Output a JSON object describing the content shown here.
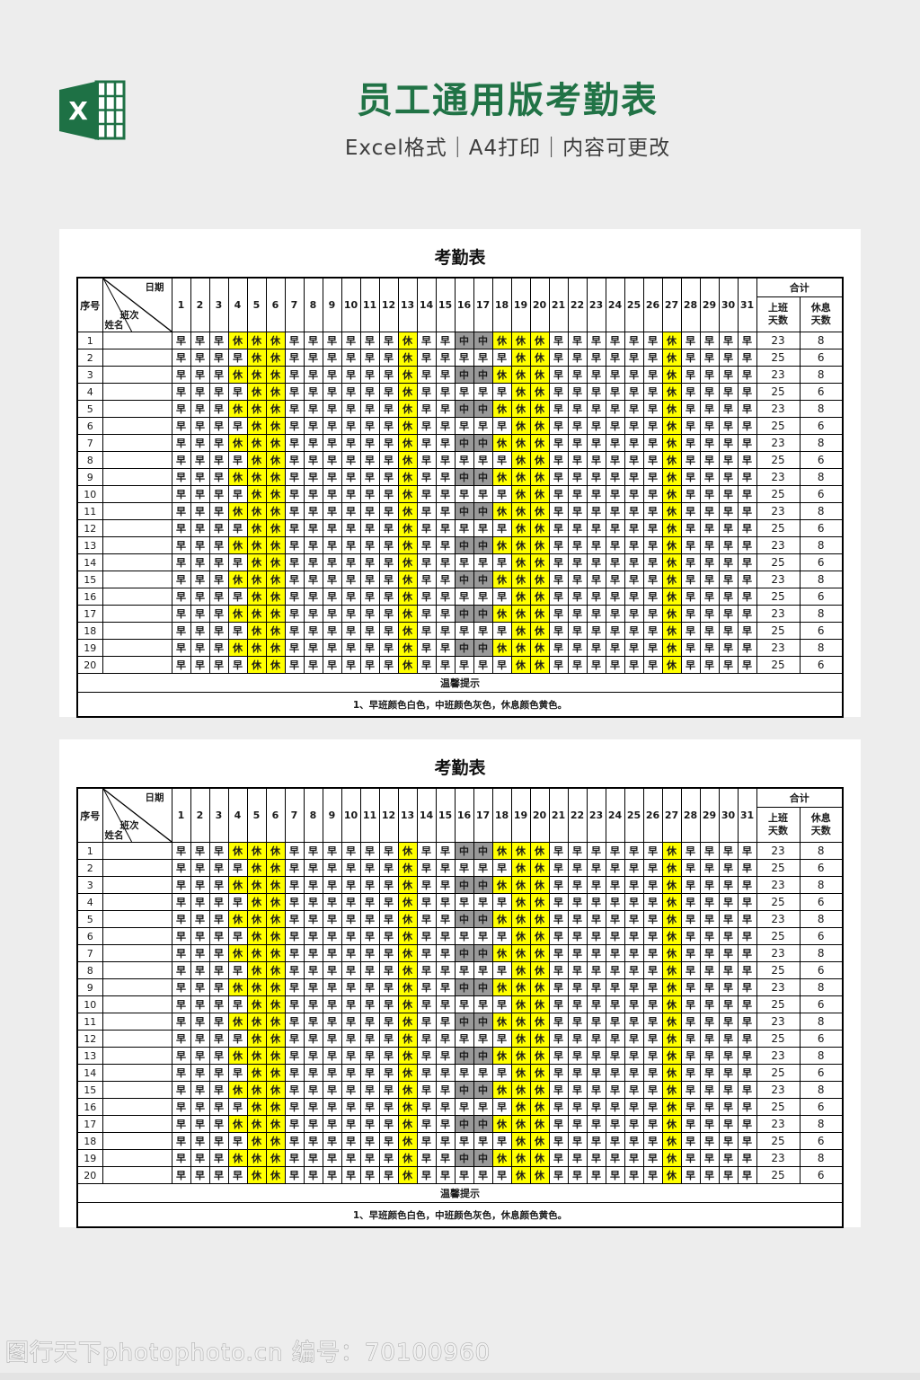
{
  "header": {
    "title": "员工通用版考勤表",
    "subtitle": "Excel格式｜A4打印｜内容可更改",
    "title_color": "#217346",
    "icon": "excel-icon"
  },
  "panels": [
    {
      "title": "考勤表"
    },
    {
      "title": "考勤表"
    }
  ],
  "attendance": {
    "seq_header": "序号",
    "corner": {
      "date": "日期",
      "shift": "班次",
      "name": "姓名"
    },
    "days": [
      1,
      2,
      3,
      4,
      5,
      6,
      7,
      8,
      9,
      10,
      11,
      12,
      13,
      14,
      15,
      16,
      17,
      18,
      19,
      20,
      21,
      22,
      23,
      24,
      25,
      26,
      27,
      28,
      29,
      30,
      31
    ],
    "total_header": "合计",
    "work_header": "上班天数",
    "rest_header": "休息天数",
    "shift_codes": {
      "morning": "早",
      "middle": "中",
      "rest": "休"
    },
    "cell_colors": {
      "早": "#ffffff",
      "中": "#999999",
      "休": "#ffff00"
    },
    "rows": [
      {
        "no": "1",
        "name": "",
        "days": "早早早休休休早早早早早早休早早中中休休休早早早早早早休早早早早",
        "work": "23",
        "rest": "8"
      },
      {
        "no": "2",
        "name": "",
        "days": "早早早早休休早早早早早早休早早早早早休休早早早早早早休早早早早",
        "work": "25",
        "rest": "6"
      },
      {
        "no": "3",
        "name": "",
        "days": "早早早休休休早早早早早早休早早中中休休休早早早早早早休早早早早",
        "work": "23",
        "rest": "8"
      },
      {
        "no": "4",
        "name": "",
        "days": "早早早早休休早早早早早早休早早早早早休休早早早早早早休早早早早",
        "work": "25",
        "rest": "6"
      },
      {
        "no": "5",
        "name": "",
        "days": "早早早休休休早早早早早早休早早中中休休休早早早早早早休早早早早",
        "work": "23",
        "rest": "8"
      },
      {
        "no": "6",
        "name": "",
        "days": "早早早早休休早早早早早早休早早早早早休休早早早早早早休早早早早",
        "work": "25",
        "rest": "6"
      },
      {
        "no": "7",
        "name": "",
        "days": "早早早休休休早早早早早早休早早中中休休休早早早早早早休早早早早",
        "work": "23",
        "rest": "8"
      },
      {
        "no": "8",
        "name": "",
        "days": "早早早早休休早早早早早早休早早早早早休休早早早早早早休早早早早",
        "work": "25",
        "rest": "6"
      },
      {
        "no": "9",
        "name": "",
        "days": "早早早休休休早早早早早早休早早中中休休休早早早早早早休早早早早",
        "work": "23",
        "rest": "8"
      },
      {
        "no": "10",
        "name": "",
        "days": "早早早早休休早早早早早早休早早早早早休休早早早早早早休早早早早",
        "work": "25",
        "rest": "6"
      },
      {
        "no": "11",
        "name": "",
        "days": "早早早休休休早早早早早早休早早中中休休休早早早早早早休早早早早",
        "work": "23",
        "rest": "8"
      },
      {
        "no": "12",
        "name": "",
        "days": "早早早早休休早早早早早早休早早早早早休休早早早早早早休早早早早",
        "work": "25",
        "rest": "6"
      },
      {
        "no": "13",
        "name": "",
        "days": "早早早休休休早早早早早早休早早中中休休休早早早早早早休早早早早",
        "work": "23",
        "rest": "8"
      },
      {
        "no": "14",
        "name": "",
        "days": "早早早早休休早早早早早早休早早早早早休休早早早早早早休早早早早",
        "work": "25",
        "rest": "6"
      },
      {
        "no": "15",
        "name": "",
        "days": "早早早休休休早早早早早早休早早中中休休休早早早早早早休早早早早",
        "work": "23",
        "rest": "8"
      },
      {
        "no": "16",
        "name": "",
        "days": "早早早早休休早早早早早早休早早早早早休休早早早早早早休早早早早",
        "work": "25",
        "rest": "6"
      },
      {
        "no": "17",
        "name": "",
        "days": "早早早休休休早早早早早早休早早中中休休休早早早早早早休早早早早",
        "work": "23",
        "rest": "8"
      },
      {
        "no": "18",
        "name": "",
        "days": "早早早早休休早早早早早早休早早早早早休休早早早早早早休早早早早",
        "work": "25",
        "rest": "6"
      },
      {
        "no": "19",
        "name": "",
        "days": "早早早休休休早早早早早早休早早中中休休休早早早早早早休早早早早",
        "work": "23",
        "rest": "8"
      },
      {
        "no": "20",
        "name": "",
        "days": "早早早早休休早早早早早早休早早早早早休休早早早早早早休早早早早",
        "work": "25",
        "rest": "6"
      }
    ],
    "tip_title": "温馨提示",
    "tip_note": "1、早班颜色白色，中班颜色灰色，休息颜色黄色。"
  },
  "watermark": {
    "text": "图行天下photophoto.cn 编号：70100960"
  }
}
